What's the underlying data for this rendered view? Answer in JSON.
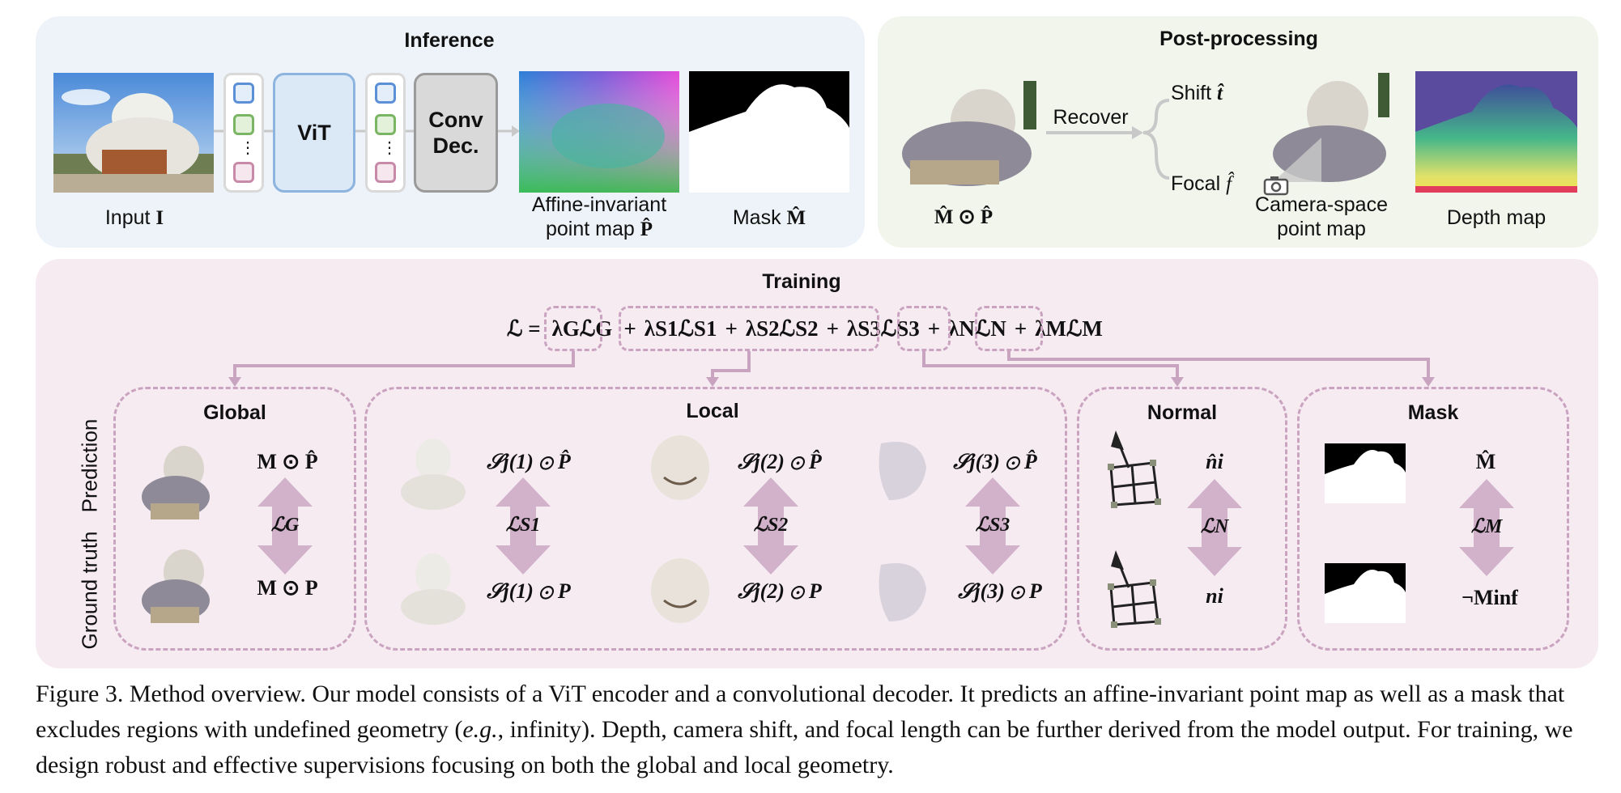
{
  "inference": {
    "title": "Inference",
    "input_label": "Input",
    "input_symbol": "I",
    "vit_label": "ViT",
    "conv_label": "Conv Dec.",
    "pointmap_label_line1": "Affine-invariant",
    "pointmap_label_line2": "point map",
    "pointmap_symbol": "P̂",
    "mask_label": "Mask",
    "mask_symbol": "M̂",
    "token_colors": [
      "#5b8fd6",
      "#79b563",
      "#c78aa9"
    ],
    "dots": "⋮"
  },
  "postprocessing": {
    "title": "Post-processing",
    "masked_label": "M̂ ⊙ P̂",
    "recover_label": "Recover",
    "shift_label": "Shift",
    "shift_symbol": "t̂",
    "focal_label": "Focal",
    "focal_symbol": "f̂",
    "camera_label_line1": "Camera-space",
    "camera_label_line2": "point map",
    "depth_label": "Depth map"
  },
  "training": {
    "title": "Training",
    "loss_lhs": "ℒ =",
    "loss_terms": [
      "λGℒG",
      "λS1ℒS1",
      "λS2ℒS2",
      "λS3ℒS3",
      "λNℒN",
      "λMℒM"
    ],
    "row_labels": [
      "Prediction",
      "Ground truth"
    ],
    "global": {
      "title": "Global",
      "pred": "M ⊙ P̂",
      "gt": "M ⊙ P",
      "loss": "ℒG"
    },
    "local": {
      "title": "Local",
      "items": [
        {
          "pred": "𝒮j(1) ⊙ P̂",
          "gt": "𝒮j(1) ⊙ P",
          "loss": "ℒS1"
        },
        {
          "pred": "𝒮j(2) ⊙ P̂",
          "gt": "𝒮j(2) ⊙ P",
          "loss": "ℒS2"
        },
        {
          "pred": "𝒮j(3) ⊙ P̂",
          "gt": "𝒮j(3) ⊙ P",
          "loss": "ℒS3"
        }
      ]
    },
    "normal": {
      "title": "Normal",
      "pred": "n̂i",
      "gt": "ni",
      "loss": "ℒN"
    },
    "mask": {
      "title": "Mask",
      "pred": "M̂",
      "gt": "¬Minf",
      "loss": "ℒM"
    }
  },
  "caption": {
    "label": "Figure 3.",
    "text_1": "Method overview. Our model consists of a ViT encoder and a convolutional decoder. It predicts an affine-invariant point map as well as a mask that excludes regions with undefined geometry (",
    "eg": "e.g.",
    "text_2": ", infinity). Depth, camera shift, and focal length can be further derived from the model output. For training, we design robust and effective supervisions focusing on both the global and local geometry."
  },
  "colors": {
    "inference_bg": "#edf3f9",
    "post_bg": "#f1f5ec",
    "training_bg": "#f7ebf2",
    "dashed": "#c9a3bf",
    "arrow": "#c8a4c0",
    "vit_fill": "#dbe8f6",
    "vit_border": "#8db3df",
    "conv_fill": "#d9d9d9",
    "conv_border": "#9a9a9a"
  }
}
